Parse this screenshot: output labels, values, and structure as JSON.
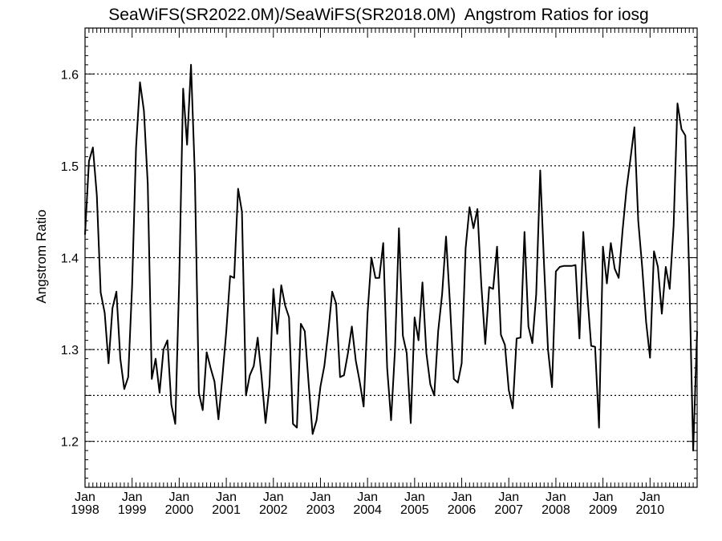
{
  "chart_data": {
    "type": "line",
    "title": "SeaWiFS(SR2022.0M)/SeaWiFS(SR2018.0M)  Angstrom Ratios for iosg",
    "ylabel": "Angstrom Ratio",
    "xlabel": "",
    "xlim": [
      1998.0,
      2011.0
    ],
    "ylim": [
      1.15,
      1.65
    ],
    "y_ticks": [
      1.2,
      1.3,
      1.4,
      1.5,
      1.6
    ],
    "y_tick_labels": [
      "1.2",
      "1.3",
      "1.4",
      "1.5",
      "1.6"
    ],
    "y_gridlines": [
      1.2,
      1.25,
      1.3,
      1.35,
      1.4,
      1.45,
      1.5,
      1.55,
      1.6
    ],
    "grid": "horizontal dotted",
    "x_ticks": [
      1998,
      1999,
      2000,
      2001,
      2002,
      2003,
      2004,
      2005,
      2006,
      2007,
      2008,
      2009,
      2010
    ],
    "x_tick_labels": [
      {
        "month": "Jan",
        "year": "1998"
      },
      {
        "month": "Jan",
        "year": "1999"
      },
      {
        "month": "Jan",
        "year": "2000"
      },
      {
        "month": "Jan",
        "year": "2001"
      },
      {
        "month": "Jan",
        "year": "2002"
      },
      {
        "month": "Jan",
        "year": "2003"
      },
      {
        "month": "Jan",
        "year": "2004"
      },
      {
        "month": "Jan",
        "year": "2005"
      },
      {
        "month": "Jan",
        "year": "2006"
      },
      {
        "month": "Jan",
        "year": "2007"
      },
      {
        "month": "Jan",
        "year": "2008"
      },
      {
        "month": "Jan",
        "year": "2009"
      },
      {
        "month": "Jan",
        "year": "2010"
      }
    ],
    "series": [
      {
        "color": "#000000",
        "x": [
          1998.0,
          1998.083,
          1998.167,
          1998.25,
          1998.333,
          1998.417,
          1998.5,
          1998.583,
          1998.667,
          1998.75,
          1998.833,
          1998.917,
          1999.0,
          1999.083,
          1999.167,
          1999.25,
          1999.333,
          1999.417,
          1999.5,
          1999.583,
          1999.667,
          1999.75,
          1999.833,
          1999.917,
          2000.0,
          2000.083,
          2000.167,
          2000.25,
          2000.333,
          2000.417,
          2000.5,
          2000.583,
          2000.667,
          2000.75,
          2000.833,
          2000.917,
          2001.0,
          2001.083,
          2001.167,
          2001.25,
          2001.333,
          2001.417,
          2001.5,
          2001.583,
          2001.667,
          2001.75,
          2001.833,
          2001.917,
          2002.0,
          2002.083,
          2002.167,
          2002.25,
          2002.333,
          2002.417,
          2002.5,
          2002.583,
          2002.667,
          2002.75,
          2002.833,
          2002.917,
          2003.0,
          2003.083,
          2003.167,
          2003.25,
          2003.333,
          2003.417,
          2003.5,
          2003.583,
          2003.667,
          2003.75,
          2003.833,
          2003.917,
          2004.0,
          2004.083,
          2004.167,
          2004.25,
          2004.333,
          2004.417,
          2004.5,
          2004.583,
          2004.667,
          2004.75,
          2004.833,
          2004.917,
          2005.0,
          2005.083,
          2005.167,
          2005.25,
          2005.333,
          2005.417,
          2005.5,
          2005.583,
          2005.667,
          2005.75,
          2005.833,
          2005.917,
          2006.0,
          2006.083,
          2006.167,
          2006.25,
          2006.333,
          2006.417,
          2006.5,
          2006.583,
          2006.667,
          2006.75,
          2006.833,
          2006.917,
          2007.0,
          2007.083,
          2007.167,
          2007.25,
          2007.333,
          2007.417,
          2007.5,
          2007.583,
          2007.667,
          2007.75,
          2007.833,
          2007.917,
          2008.0,
          2008.083,
          2008.167,
          2008.25,
          2008.333,
          2008.417,
          2008.5,
          2008.583,
          2008.667,
          2008.75,
          2008.833,
          2008.917,
          2009.0,
          2009.083,
          2009.167,
          2009.25,
          2009.333,
          2009.417,
          2009.5,
          2009.583,
          2009.667,
          2009.75,
          2009.833,
          2009.917,
          2010.0,
          2010.083,
          2010.167,
          2010.25,
          2010.333,
          2010.417,
          2010.5,
          2010.583,
          2010.667,
          2010.75,
          2010.833,
          2010.917,
          2011.0
        ],
        "y": [
          1.425,
          1.505,
          1.52,
          1.468,
          1.362,
          1.34,
          1.285,
          1.345,
          1.363,
          1.29,
          1.257,
          1.27,
          1.37,
          1.52,
          1.591,
          1.56,
          1.48,
          1.268,
          1.29,
          1.253,
          1.3,
          1.31,
          1.24,
          1.219,
          1.375,
          1.584,
          1.523,
          1.61,
          1.49,
          1.253,
          1.234,
          1.297,
          1.28,
          1.265,
          1.224,
          1.27,
          1.32,
          1.38,
          1.378,
          1.475,
          1.45,
          1.25,
          1.272,
          1.282,
          1.313,
          1.27,
          1.22,
          1.26,
          1.366,
          1.317,
          1.37,
          1.348,
          1.335,
          1.219,
          1.215,
          1.328,
          1.32,
          1.262,
          1.208,
          1.223,
          1.26,
          1.282,
          1.32,
          1.363,
          1.35,
          1.27,
          1.272,
          1.296,
          1.325,
          1.288,
          1.265,
          1.238,
          1.34,
          1.4,
          1.378,
          1.378,
          1.416,
          1.28,
          1.223,
          1.3,
          1.432,
          1.315,
          1.296,
          1.22,
          1.335,
          1.31,
          1.373,
          1.296,
          1.262,
          1.25,
          1.32,
          1.36,
          1.423,
          1.35,
          1.268,
          1.264,
          1.285,
          1.41,
          1.455,
          1.432,
          1.453,
          1.37,
          1.306,
          1.368,
          1.366,
          1.412,
          1.316,
          1.305,
          1.256,
          1.236,
          1.312,
          1.313,
          1.428,
          1.325,
          1.307,
          1.36,
          1.495,
          1.39,
          1.3,
          1.259,
          1.385,
          1.39,
          1.391,
          1.391,
          1.391,
          1.392,
          1.312,
          1.428,
          1.36,
          1.304,
          1.303,
          1.215,
          1.412,
          1.372,
          1.416,
          1.388,
          1.378,
          1.43,
          1.475,
          1.507,
          1.542,
          1.44,
          1.39,
          1.33,
          1.291,
          1.407,
          1.39,
          1.339,
          1.39,
          1.366,
          1.435,
          1.568,
          1.54,
          1.533,
          1.38,
          1.19,
          1.32
        ]
      }
    ]
  }
}
